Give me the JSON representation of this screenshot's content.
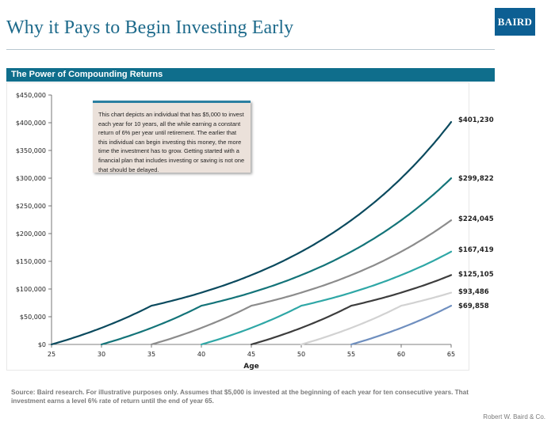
{
  "header": {
    "title": "Why it Pays to Begin Investing Early",
    "logo_text": "BAIRD",
    "section_title": "The Power of Compounding Returns"
  },
  "note": "This chart depicts an individual that has $5,000 to invest each year for 10 years, all the while earning a constant return of 6% per year until retirement.  The earlier that this individual can begin investing this money, the more time the investment has to grow. Getting started with a financial plan that includes investing or saving is not one that should be delayed.",
  "source": "Source: Baird research. For illustrative purposes only.  Assumes that $5,000 is invested at the beginning of each year for ten consecutive years.  That investment earns a level 6% rate of return until the end of year 65.",
  "footer": "Robert W. Baird & Co.",
  "colors": {
    "title": "#1d6a8b",
    "logo": "#0d5f93",
    "section_bar": "#0f6e8c"
  },
  "chart_data": {
    "type": "line",
    "title": "",
    "xlabel": "Age",
    "ylabel": "",
    "xlim": [
      25,
      65
    ],
    "ylim": [
      0,
      450000
    ],
    "x_ticks": [
      "25",
      "30",
      "35",
      "40",
      "45",
      "50",
      "55",
      "60",
      "65"
    ],
    "y_ticks": [
      "$0",
      "$50,000",
      "$100,000",
      "$150,000",
      "$200,000",
      "$250,000",
      "$300,000",
      "$350,000",
      "$400,000",
      "$450,000"
    ],
    "grid": false,
    "legend": "none",
    "series": [
      {
        "start_age": 25,
        "color": "#0b4a5e",
        "end_value": 401230,
        "end_label": "$401,230"
      },
      {
        "start_age": 30,
        "color": "#147479",
        "end_value": 299822,
        "end_label": "$299,822"
      },
      {
        "start_age": 35,
        "color": "#8c8c8c",
        "end_value": 224045,
        "end_label": "$224,045"
      },
      {
        "start_age": 40,
        "color": "#2fa7a6",
        "end_value": 167419,
        "end_label": "$167,419"
      },
      {
        "start_age": 45,
        "color": "#3d3d3d",
        "end_value": 125105,
        "end_label": "$125,105"
      },
      {
        "start_age": 50,
        "color": "#d2d2d2",
        "end_value": 93486,
        "end_label": "$93,486"
      },
      {
        "start_age": 55,
        "color": "#6f8fbf",
        "end_value": 69858,
        "end_label": "$69,858"
      }
    ]
  }
}
